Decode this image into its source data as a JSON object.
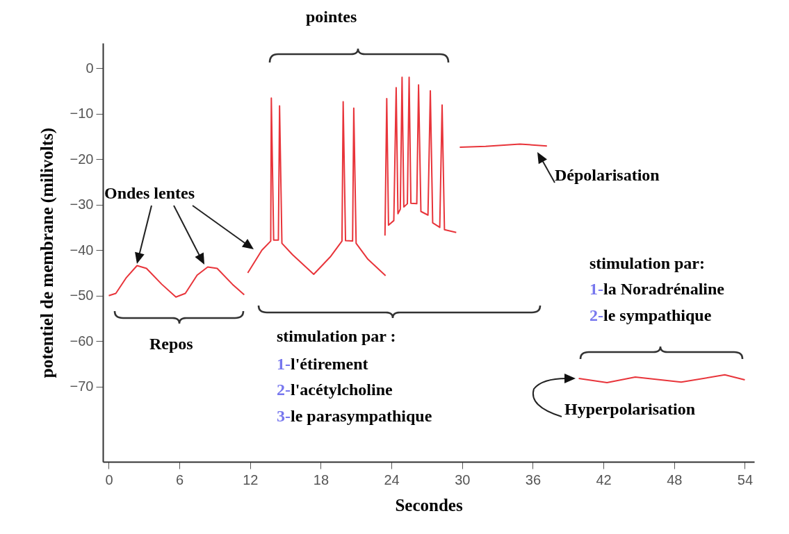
{
  "chart_data": {
    "type": "line",
    "xlabel": "Secondes",
    "ylabel": "potentiel de membrane (milivolts)",
    "xlim": [
      -0.5,
      54.8
    ],
    "ylim": [
      -86.5,
      5.5
    ],
    "xticks": [
      0,
      6,
      12,
      18,
      24,
      30,
      36,
      42,
      48,
      54
    ],
    "yticks": [
      0,
      -10,
      -20,
      -30,
      -40,
      -50,
      -60,
      -70
    ],
    "series": [
      {
        "color": "#e8343a",
        "x": [
          0,
          0.6,
          1.5,
          2.4,
          3.2,
          4.5,
          5.7,
          6.5,
          7.5,
          8.4,
          9.2,
          10.5,
          11.5
        ],
        "values": [
          -50,
          -49.5,
          -46,
          -43.4,
          -44,
          -47.5,
          -50.3,
          -49.5,
          -45.5,
          -43.7,
          -44,
          -47.5,
          -49.8
        ]
      },
      {
        "color": "#e8343a",
        "x": [
          11.8,
          13,
          13.75,
          13.8,
          14,
          14.4,
          14.5,
          14.7,
          15.6,
          17.4,
          18.8,
          19.8,
          19.9,
          20.1,
          20.7,
          20.8,
          21,
          22,
          23.5
        ],
        "values": [
          -45,
          -40,
          -38,
          -6.6,
          -37.8,
          -37.8,
          -8.3,
          -38.5,
          -41,
          -45.3,
          -41.5,
          -38,
          -7.4,
          -37.9,
          -38,
          -8.8,
          -38.5,
          -42,
          -45.6
        ]
      },
      {
        "color": "#e8343a",
        "x": [
          23.45,
          23.6,
          23.75,
          24.2,
          24.4,
          24.55,
          24.75,
          24.9,
          25.05,
          25.35,
          25.5,
          25.65,
          26.15,
          26.3,
          26.5,
          27.1,
          27.3,
          27.5,
          28.1,
          28.3,
          28.5,
          29.5
        ],
        "values": [
          -36.8,
          -6.7,
          -34.5,
          -33.5,
          -4.3,
          -32,
          -31,
          -2,
          -30.5,
          -29.8,
          -2,
          -29.7,
          -29.8,
          -3.7,
          -31.5,
          -32.3,
          -5,
          -34,
          -35,
          -8.1,
          -35.5,
          -36.1
        ]
      },
      {
        "color": "#e8343a",
        "x": [
          29.8,
          32,
          34.9,
          37.2
        ],
        "values": [
          -17.4,
          -17.2,
          -16.7,
          -17.1
        ]
      },
      {
        "color": "#e8343a",
        "x": [
          39.9,
          42.3,
          44.7,
          48.6,
          52.3,
          54
        ],
        "values": [
          -68.2,
          -69.1,
          -67.9,
          -69,
          -67.4,
          -68.5
        ]
      }
    ],
    "annotations": [
      "pointes",
      "Ondes lentes",
      "Dépolarisation",
      "Repos",
      "stimulation par :",
      "1-l'étirement",
      "2-l'acétylcholine",
      "3-le parasympathique",
      "stimulation par:",
      "1-la Noradrénaline",
      "2-le sympathique",
      "Hyperpolarisation"
    ]
  }
}
